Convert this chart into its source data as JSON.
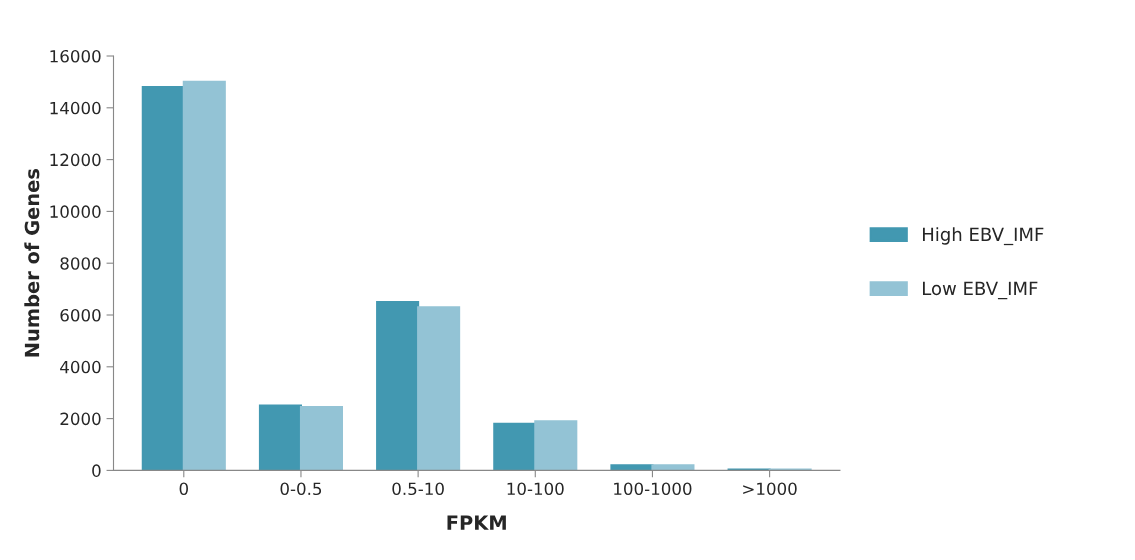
{
  "chart_data": {
    "type": "bar",
    "xlabel": "FPKM",
    "ylabel": "Number of Genes",
    "categories": [
      "0",
      "0-0.5",
      "0.5-10",
      "10-100",
      "100-1000",
      ">1000"
    ],
    "series": [
      {
        "name": "High EBV_IMF",
        "color": "#4298b1",
        "values": [
          14800,
          2500,
          6500,
          1800,
          200,
          30
        ]
      },
      {
        "name": "Low EBV_IMF",
        "color": "#93c3d5",
        "values": [
          15000,
          2450,
          6300,
          1900,
          200,
          30
        ]
      }
    ],
    "ylim": [
      0,
      16000
    ],
    "yticks": [
      0,
      2000,
      4000,
      6000,
      8000,
      10000,
      12000,
      14000,
      16000
    ],
    "legend": "right",
    "grid": false
  }
}
